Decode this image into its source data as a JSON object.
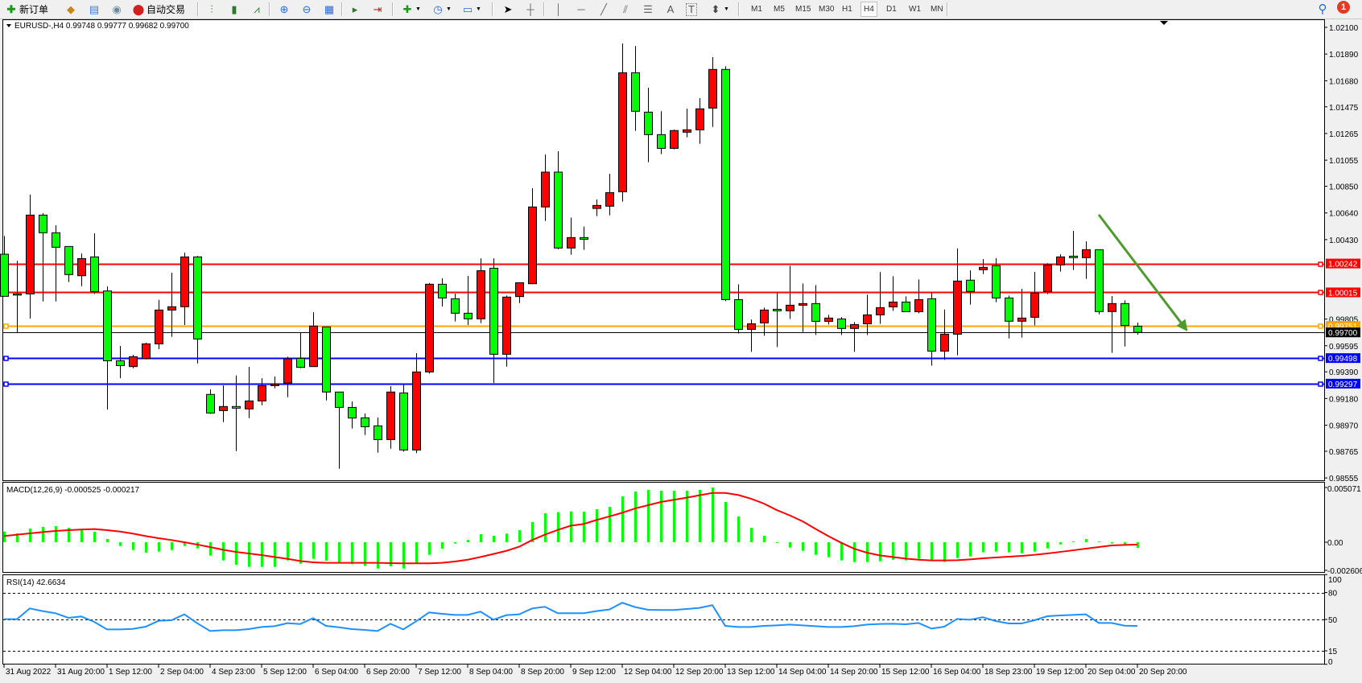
{
  "toolbar": {
    "new_order_label": "新订单",
    "auto_trade_label": "自动交易",
    "timeframes": [
      "M1",
      "M5",
      "M15",
      "M30",
      "H1",
      "H4",
      "D1",
      "W1",
      "MN"
    ],
    "selected_timeframe": "H4",
    "text_tool_label": "A",
    "text_label_tool_label": "T",
    "notification_count": "1"
  },
  "chart": {
    "header": "EURUSD-,H4  0.99748 0.99777 0.99682 0.99700",
    "symbol": "EURUSD-",
    "timeframe": "H4",
    "up_color": "#ff0000",
    "down_color": "#00ff00"
  },
  "chart_data": {
    "type": "candlestick",
    "ohlc": [
      [
        1.00315,
        1.00459,
        0.99984,
        0.99984
      ],
      [
        1.00003,
        1.00264,
        0.99699,
        1.00003
      ],
      [
        1.00003,
        1.00784,
        0.99809,
        1.00623
      ],
      [
        1.00623,
        1.00638,
        0.99943,
        1.00484
      ],
      [
        1.00484,
        1.00543,
        0.99943,
        1.0037
      ],
      [
        1.00376,
        1.00376,
        1.00096,
        1.00155
      ],
      [
        1.00146,
        1.00321,
        1.00064,
        1.00281
      ],
      [
        1.00294,
        1.0048,
        1.00003,
        1.0002
      ],
      [
        1.00026,
        1.00062,
        0.99093,
        0.99477
      ],
      [
        0.99477,
        0.99594,
        0.9934,
        0.99439
      ],
      [
        0.99431,
        0.99524,
        0.99418,
        0.99509
      ],
      [
        0.99494,
        0.99619,
        0.99488,
        0.9961
      ],
      [
        0.9961,
        0.99956,
        0.99568,
        0.99876
      ],
      [
        0.99876,
        1.0017,
        0.99665,
        0.99902
      ],
      [
        0.99902,
        1.00328,
        0.99758,
        1.00294
      ],
      [
        1.00294,
        1.00302,
        0.99456,
        0.99648
      ],
      [
        0.99212,
        0.99252,
        0.9906,
        0.99066
      ],
      [
        0.99085,
        0.99283,
        0.98994,
        0.99117
      ],
      [
        0.99117,
        0.99361,
        0.98766,
        0.99104
      ],
      [
        0.99098,
        0.99429,
        0.99026,
        0.99161
      ],
      [
        0.99161,
        0.9934,
        0.99127,
        0.99281
      ],
      [
        0.99281,
        0.99353,
        0.9926,
        0.99292
      ],
      [
        0.99302,
        0.99509,
        0.9919,
        0.99492
      ],
      [
        0.99496,
        0.99699,
        0.99418,
        0.99425
      ],
      [
        0.99431,
        0.99859,
        0.99431,
        0.9975
      ],
      [
        0.99743,
        0.99743,
        0.99165,
        0.99231
      ],
      [
        0.99231,
        0.99231,
        0.98627,
        0.9911
      ],
      [
        0.9911,
        0.99157,
        0.98944,
        0.99026
      ],
      [
        0.99028,
        0.99062,
        0.98893,
        0.98958
      ],
      [
        0.98965,
        0.9903,
        0.98754,
        0.98857
      ],
      [
        0.98857,
        0.99277,
        0.98785,
        0.99231
      ],
      [
        0.99224,
        0.99292,
        0.98762,
        0.98775
      ],
      [
        0.98775,
        0.99537,
        0.9875,
        0.99389
      ],
      [
        0.99389,
        1.00089,
        0.99376,
        1.00079
      ],
      [
        1.00079,
        1.00125,
        0.99904,
        0.99971
      ],
      [
        0.99965,
        1.00005,
        0.99786,
        0.99851
      ],
      [
        0.99851,
        1.00144,
        0.99758,
        0.99807
      ],
      [
        0.99807,
        1.00283,
        0.99773,
        1.00186
      ],
      [
        1.00205,
        1.00283,
        0.99302,
        0.99528
      ],
      [
        0.99528,
        0.9999,
        0.99431,
        0.99978
      ],
      [
        0.99982,
        1.00091,
        0.99931,
        1.00091
      ],
      [
        1.00083,
        1.00834,
        1.00079,
        1.00687
      ],
      [
        1.00687,
        1.011,
        1.00577,
        1.00961
      ],
      [
        1.00961,
        1.01125,
        1.00355,
        1.00364
      ],
      [
        1.00364,
        1.00603,
        1.00311,
        1.00446
      ],
      [
        1.00446,
        1.00533,
        1.00349,
        1.00433
      ],
      [
        1.00675,
        1.00746,
        1.00615,
        1.00699
      ],
      [
        1.00693,
        1.00948,
        1.00621,
        1.008
      ],
      [
        1.00807,
        1.01973,
        1.00729,
        1.01743
      ],
      [
        1.01743,
        1.01954,
        1.01286,
        1.0144
      ],
      [
        1.01433,
        1.01625,
        1.01039,
        1.01256
      ],
      [
        1.01256,
        1.0144,
        1.01102,
        1.01148
      ],
      [
        1.01148,
        1.01296,
        1.0114,
        1.01288
      ],
      [
        1.01275,
        1.01461,
        1.01235,
        1.01294
      ],
      [
        1.01294,
        1.01543,
        1.01184,
        1.01459
      ],
      [
        1.01465,
        1.01866,
        1.01317,
        1.01769
      ],
      [
        1.01769,
        1.01794,
        0.99946,
        0.99958
      ],
      [
        0.99958,
        1.00079,
        0.99692,
        0.99724
      ],
      [
        0.99724,
        0.99802,
        0.99547,
        0.99768
      ],
      [
        0.99775,
        0.99895,
        0.99674,
        0.99876
      ],
      [
        0.99882,
        1.00015,
        0.99585,
        0.9987
      ],
      [
        0.9987,
        1.00224,
        0.99806,
        0.99914
      ],
      [
        0.99914,
        1.00085,
        0.99703,
        0.99927
      ],
      [
        0.99927,
        1.00072,
        0.9968,
        0.99787
      ],
      [
        0.99787,
        0.99838,
        0.99762,
        0.99813
      ],
      [
        0.99806,
        0.99821,
        0.9968,
        0.99731
      ],
      [
        0.99731,
        0.99781,
        0.99547,
        0.99762
      ],
      [
        0.99768,
        0.99996,
        0.9968,
        0.99838
      ],
      [
        0.99838,
        1.00174,
        0.99768,
        0.99895
      ],
      [
        0.99901,
        1.00142,
        0.9987,
        0.99939
      ],
      [
        0.99939,
        0.99984,
        0.99863,
        0.99863
      ],
      [
        0.99863,
        1.00117,
        0.99851,
        0.99958
      ],
      [
        0.99965,
        1.00015,
        0.99439,
        0.99553
      ],
      [
        0.99553,
        0.9988,
        0.99484,
        0.99686
      ],
      [
        0.99686,
        1.0036,
        0.9952,
        1.00104
      ],
      [
        1.00111,
        1.00189,
        0.99919,
        1.00022
      ],
      [
        1.00193,
        1.00277,
        1.00159,
        1.00212
      ],
      [
        1.00225,
        1.00284,
        0.99938,
        0.99971
      ],
      [
        0.99971,
        0.9999,
        0.99653,
        0.99788
      ],
      [
        0.99788,
        1.00043,
        0.99659,
        0.99813
      ],
      [
        0.99819,
        1.00176,
        0.99756,
        1.00009
      ],
      [
        1.00022,
        1.00244,
        1.00001,
        1.00231
      ],
      [
        1.00231,
        1.00315,
        1.00178,
        1.00294
      ],
      [
        1.003,
        1.00499,
        1.00191,
        1.00288
      ],
      [
        1.00288,
        1.00417,
        1.00121,
        1.00351
      ],
      [
        1.00351,
        1.00351,
        0.99843,
        0.99864
      ],
      [
        0.99864,
        0.99986,
        0.99539,
        0.99927
      ],
      [
        0.99927,
        0.99952,
        0.99589,
        0.99754
      ],
      [
        0.99748,
        0.99777,
        0.99682,
        0.997
      ]
    ],
    "price_range": [
      0.98555,
      1.021
    ],
    "price_ticks": [
      "1.02100",
      "1.01890",
      "1.01680",
      "1.01475",
      "1.01265",
      "1.01055",
      "1.00850",
      "1.00640",
      "1.00430",
      "0.99805",
      "0.99595",
      "0.99390",
      "0.99180",
      "0.98970",
      "0.98765",
      "0.98555"
    ],
    "time_labels": [
      "31 Aug 2022",
      "31 Aug 20:00",
      "1 Sep 12:00",
      "2 Sep 04:00",
      "4 Sep 23:00",
      "5 Sep 12:00",
      "6 Sep 04:00",
      "6 Sep 20:00",
      "7 Sep 12:00",
      "8 Sep 04:00",
      "8 Sep 20:00",
      "9 Sep 12:00",
      "12 Sep 04:00",
      "12 Sep 20:00",
      "13 Sep 12:00",
      "14 Sep 04:00",
      "14 Sep 20:00",
      "15 Sep 12:00",
      "16 Sep 04:00",
      "18 Sep 23:00",
      "19 Sep 12:00",
      "20 Sep 04:00",
      "20 Sep 20:00"
    ],
    "horizontal_lines": [
      {
        "price": 1.00242,
        "label": "1.00242",
        "color": "#ff0000"
      },
      {
        "price": 1.00015,
        "label": "1.00015",
        "color": "#ff0000"
      },
      {
        "price": 0.99751,
        "label": "0.99751",
        "color": "#ffa500"
      },
      {
        "price": 0.99498,
        "label": "0.99498",
        "color": "#0000ff"
      },
      {
        "price": 0.99297,
        "label": "0.99297",
        "color": "#0000ff"
      }
    ],
    "current_price": {
      "price": 0.997,
      "label": "0.99700"
    },
    "trend_arrow": {
      "from": {
        "bar": 85.0,
        "price": 1.00626
      },
      "to": {
        "bar": 91.9,
        "price": 0.99708
      },
      "color": "#4f9a2e"
    },
    "macd": {
      "label": "MACD(12,26,9) -0.000525 -0.000217",
      "range": [
        -0.002606,
        0.005071
      ],
      "ticks": [
        "0.005071",
        "0.00",
        "-0.002606"
      ],
      "histogram_color": "#00ff00",
      "signal_color": "#ff0000",
      "histogram": [
        0.00099,
        0.00082,
        0.00127,
        0.00142,
        0.00149,
        0.00134,
        0.00119,
        0.00097,
        0.0003,
        -0.00035,
        -0.00072,
        -0.00097,
        -0.00087,
        -0.00072,
        -0.00035,
        -0.00057,
        -0.00124,
        -0.00169,
        -0.00209,
        -0.00229,
        -0.00229,
        -0.00229,
        -0.00169,
        -0.00199,
        -0.00154,
        -0.00172,
        -0.00191,
        -0.00204,
        -0.00219,
        -0.00244,
        -0.00224,
        -0.00244,
        -0.00194,
        -0.00117,
        -0.0006,
        -0.00012,
        0.00022,
        0.00075,
        0.0006,
        0.0008,
        0.00112,
        0.00187,
        0.00269,
        0.00279,
        0.00286,
        0.00283,
        0.00306,
        0.00328,
        0.00425,
        0.0047,
        0.00485,
        0.00477,
        0.00477,
        0.00477,
        0.00485,
        0.00507,
        0.00373,
        0.00239,
        0.00134,
        0.0006,
        -7e-05,
        -0.0005,
        -0.0008,
        -0.00117,
        -0.00139,
        -0.00169,
        -0.00184,
        -0.00184,
        -0.00177,
        -0.00162,
        -0.00169,
        -0.00154,
        -0.00169,
        -0.00184,
        -0.00147,
        -0.00132,
        -0.00094,
        -0.00087,
        -0.00094,
        -0.00102,
        -0.00087,
        -0.00057,
        -0.0002,
        7e-05,
        0.0003,
        7e-05,
        -0.00012,
        -0.0002,
        -0.000525
      ],
      "signal": [
        0.00057,
        0.0007,
        0.00082,
        0.00094,
        0.00104,
        0.00112,
        0.00117,
        0.00122,
        0.00112,
        0.00099,
        0.0008,
        0.00057,
        0.00037,
        0.0002,
        0.0,
        -0.00022,
        -0.00045,
        -0.0007,
        -0.0009,
        -0.00104,
        -0.00119,
        -0.00137,
        -0.00154,
        -0.00174,
        -0.00186,
        -0.00191,
        -0.00191,
        -0.00191,
        -0.00191,
        -0.00191,
        -0.00194,
        -0.00196,
        -0.00196,
        -0.00196,
        -0.00191,
        -0.00179,
        -0.00162,
        -0.00137,
        -0.00109,
        -0.0008,
        -0.00042,
        0.0002,
        0.0007,
        0.00114,
        0.00153,
        0.00169,
        0.00206,
        0.00239,
        0.00273,
        0.00313,
        0.00343,
        0.00373,
        0.00393,
        0.00413,
        0.00435,
        0.00457,
        0.00457,
        0.00438,
        0.00403,
        0.00358,
        0.00298,
        0.00249,
        0.00194,
        0.00124,
        0.00057,
        -5e-05,
        -0.0006,
        -0.00097,
        -0.00122,
        -0.00137,
        -0.00152,
        -0.00162,
        -0.00169,
        -0.00169,
        -0.00167,
        -0.00159,
        -0.00149,
        -0.00142,
        -0.00134,
        -0.00127,
        -0.00117,
        -0.00104,
        -0.0009,
        -0.00075,
        -0.0006,
        -0.00045,
        -0.0003,
        -0.00025,
        -0.000217
      ]
    },
    "rsi": {
      "label": "RSI(14) 42.6634",
      "range": [
        0,
        100
      ],
      "levels": [
        80,
        50,
        15
      ],
      "ticks": [
        "100",
        "80",
        "50",
        "15",
        "0"
      ],
      "color": "#1e90ff",
      "values": [
        50.3,
        50.3,
        62.3,
        59.3,
        56.9,
        51.8,
        53.3,
        47.3,
        38.9,
        38.9,
        39.5,
        41.9,
        48.5,
        49.1,
        55.7,
        45.8,
        37.1,
        38.0,
        38.0,
        39.2,
        41.6,
        42.5,
        45.8,
        44.9,
        51.5,
        42.8,
        41.3,
        39.2,
        38.3,
        37.1,
        45.2,
        38.9,
        47.9,
        57.8,
        56.3,
        55.1,
        55.1,
        58.7,
        49.7,
        54.8,
        55.7,
        62.3,
        64.1,
        56.9,
        56.9,
        56.9,
        59.3,
        61.1,
        68.6,
        63.8,
        60.8,
        60.5,
        60.5,
        61.7,
        62.9,
        65.9,
        42.8,
        41.6,
        41.6,
        42.8,
        43.4,
        44.3,
        43.4,
        42.5,
        41.6,
        41.6,
        42.5,
        44.3,
        44.9,
        45.2,
        44.6,
        46.1,
        39.8,
        41.9,
        50.6,
        49.7,
        52.4,
        48.2,
        45.5,
        45.5,
        49.1,
        53.6,
        54.5,
        55.1,
        55.7,
        46.1,
        46.1,
        43.1,
        42.66
      ]
    }
  }
}
